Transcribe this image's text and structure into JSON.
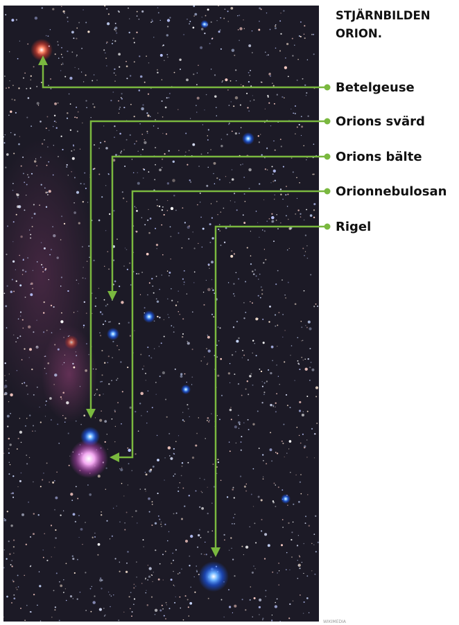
{
  "title_lines": [
    "STJÄRNBILDEN",
    "ORION."
  ],
  "labels": [
    "Betelgeuse",
    "Orions svärd",
    "Orions bälte",
    "Orionnebulosan",
    "Rigel"
  ],
  "credit": "WIKIMEDIA"
}
